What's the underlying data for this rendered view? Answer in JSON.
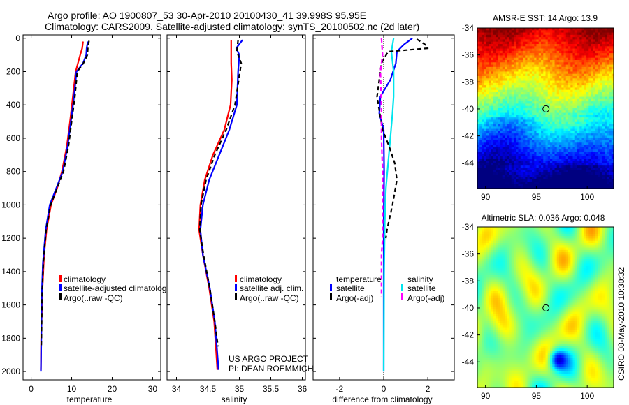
{
  "header": {
    "title_line1": "Argo profile: AO 1900807_53 30-Apr-2010 20100430_41 39.998S 95.95E",
    "title_line2": "Climatology: CARS2009. Satellite-adjusted climatology: synTS_20100502.nc (2d later)"
  },
  "credits": {
    "project": "US ARGO PROJECT",
    "pi": "PI: DEAN ROEMMICH",
    "side_stamp": "CSIRO 08-May-2010 10:30:32"
  },
  "colors": {
    "red": "#ff0000",
    "blue": "#0000ff",
    "black": "#000000",
    "cyan": "#00e5ee",
    "magenta": "#ff00ff"
  },
  "chart_data": [
    {
      "id": "temperature",
      "type": "line",
      "xlabel": "temperature",
      "xlim": [
        -2,
        32
      ],
      "ylim": [
        2050,
        -20
      ],
      "xticks": [
        0,
        10,
        20,
        30
      ],
      "yticks": [
        0,
        200,
        400,
        600,
        800,
        1000,
        1200,
        1400,
        1600,
        1800,
        2000
      ],
      "legend": [
        "climatology",
        "satellite-adjusted climatology",
        "Argo(..raw -QC)"
      ],
      "series": [
        {
          "name": "climatology",
          "color": "red",
          "dash": false,
          "x": [
            12.8,
            12.6,
            12.0,
            11.0,
            10.3,
            9.6,
            8.8,
            7.6,
            6.4,
            4.9,
            3.8,
            3.2,
            2.8,
            2.5,
            2.4
          ],
          "y": [
            20,
            60,
            110,
            200,
            350,
            500,
            650,
            800,
            900,
            1000,
            1150,
            1300,
            1500,
            1750,
            1990
          ]
        },
        {
          "name": "satellite-adjusted climatology",
          "color": "blue",
          "dash": false,
          "x": [
            14.0,
            13.7,
            13.6,
            12.8,
            11.2,
            10.6,
            9.8,
            9.0,
            7.8,
            6.2,
            4.6,
            3.6,
            2.9,
            2.6,
            2.5,
            2.4
          ],
          "y": [
            20,
            60,
            100,
            150,
            200,
            350,
            500,
            650,
            800,
            900,
            1000,
            1150,
            1350,
            1550,
            1800,
            2000
          ]
        },
        {
          "name": "Argo(..raw -QC)",
          "color": "black",
          "dash": true,
          "x": [
            14.3,
            14.0,
            13.9,
            12.9,
            11.4,
            10.8,
            10.0,
            9.2,
            8.0,
            6.4,
            4.8,
            3.7,
            3.0,
            2.7,
            2.5
          ],
          "y": [
            15,
            60,
            100,
            150,
            200,
            350,
            500,
            650,
            800,
            900,
            1000,
            1150,
            1350,
            1550,
            1850
          ]
        }
      ]
    },
    {
      "id": "salinity",
      "type": "line",
      "xlabel": "salinity",
      "xlim": [
        33.85,
        36.05
      ],
      "ylim": [
        2050,
        -20
      ],
      "xticks": [
        34,
        34.5,
        35,
        35.5,
        36
      ],
      "xticklabels": [
        "34",
        "34.5",
        "35",
        "35.5",
        "36"
      ],
      "legend": [
        "climatology",
        "satellite adj. clim.",
        "Argo(..raw -QC)"
      ],
      "series": [
        {
          "name": "climatology",
          "color": "red",
          "dash": false,
          "x": [
            34.87,
            34.87,
            34.87,
            34.88,
            34.86,
            34.76,
            34.58,
            34.45,
            34.38,
            34.36,
            34.42,
            34.52,
            34.6,
            34.65
          ],
          "y": [
            10,
            80,
            150,
            250,
            400,
            550,
            700,
            850,
            1000,
            1150,
            1300,
            1500,
            1700,
            1990
          ]
        },
        {
          "name": "satellite adj. clim.",
          "color": "blue",
          "dash": false,
          "x": [
            35.05,
            34.95,
            35.0,
            34.98,
            34.96,
            34.84,
            34.68,
            34.52,
            34.42,
            34.38,
            34.42,
            34.53,
            34.61,
            34.67
          ],
          "y": [
            10,
            60,
            100,
            200,
            400,
            550,
            700,
            850,
            1000,
            1150,
            1300,
            1500,
            1700,
            1990
          ]
        },
        {
          "name": "Argo(..raw -QC)",
          "color": "black",
          "dash": true,
          "x": [
            34.98,
            34.96,
            35.03,
            34.99,
            34.93,
            34.79,
            34.61,
            34.47,
            34.39,
            34.37,
            34.43,
            34.53,
            34.61,
            34.66
          ],
          "y": [
            10,
            80,
            150,
            250,
            400,
            550,
            700,
            850,
            1000,
            1150,
            1300,
            1500,
            1700,
            1850
          ]
        }
      ]
    },
    {
      "id": "difference",
      "type": "line",
      "xlabel": "difference from climatology",
      "xlim": [
        -3.2,
        3.2
      ],
      "ylim": [
        2050,
        -20
      ],
      "xticks": [
        -2,
        0,
        2
      ],
      "legend_left_title": "temperature",
      "legend_right_title": "salinity",
      "legend_left": [
        "satellite",
        "Argo(-adj)"
      ],
      "legend_right": [
        "satellite",
        "Argo(-adj)"
      ],
      "series": [
        {
          "name": "temperature satellite",
          "color": "blue",
          "dash": false,
          "x": [
            1.3,
            0.9,
            0.6,
            0.55,
            0.3,
            -0.15,
            -0.2,
            0.0,
            0.02,
            0.0,
            0.0,
            0.0
          ],
          "y": [
            0,
            40,
            80,
            150,
            250,
            350,
            450,
            550,
            800,
            1100,
            1500,
            2000
          ]
        },
        {
          "name": "salinity satellite",
          "color": "cyan",
          "dash": false,
          "x": [
            0.45,
            0.35,
            0.45,
            0.45,
            0.4,
            0.3,
            0.2,
            0.1,
            0.05,
            0.02,
            0.0
          ],
          "y": [
            0,
            80,
            200,
            350,
            450,
            600,
            750,
            900,
            1100,
            1400,
            2000
          ]
        },
        {
          "name": "temperature Argo(-adj)",
          "color": "black",
          "dash": true,
          "x": [
            1.5,
            1.9,
            2.0,
            0.2,
            -0.1,
            -0.3,
            -0.05,
            0.25,
            0.5,
            0.6,
            0.4,
            0.15,
            0.1
          ],
          "y": [
            5,
            40,
            60,
            80,
            150,
            350,
            550,
            650,
            750,
            850,
            1000,
            1150,
            1200
          ]
        },
        {
          "name": "salinity Argo(-adj)",
          "color": "magenta",
          "dash": true,
          "x": [
            -0.1,
            -0.05,
            -0.15,
            -0.1,
            -0.1,
            -0.05,
            -0.05,
            -0.05,
            -0.1,
            -0.1
          ],
          "y": [
            0,
            100,
            200,
            400,
            600,
            800,
            1000,
            1200,
            1300,
            1550
          ]
        }
      ]
    },
    {
      "id": "sst_map",
      "type": "heatmap",
      "title": "AMSR-E SST: 14 Argo: 13.9",
      "xlim": [
        89.2,
        102.6
      ],
      "ylim": [
        -45.9,
        -34
      ],
      "xticks": [
        90,
        95,
        100
      ],
      "yticks": [
        -34,
        -36,
        -38,
        -40,
        -42,
        -44
      ],
      "float_lon": 95.95,
      "float_lat": -39.998
    },
    {
      "id": "sla_map",
      "type": "heatmap",
      "title": "Altimetric SLA: 0.036 Argo: 0.048",
      "xlim": [
        89.2,
        102.6
      ],
      "ylim": [
        -45.9,
        -34
      ],
      "xticks": [
        90,
        95,
        100
      ],
      "yticks": [
        -34,
        -36,
        -38,
        -40,
        -42,
        -44
      ],
      "float_lon": 95.95,
      "float_lat": -39.998
    }
  ]
}
